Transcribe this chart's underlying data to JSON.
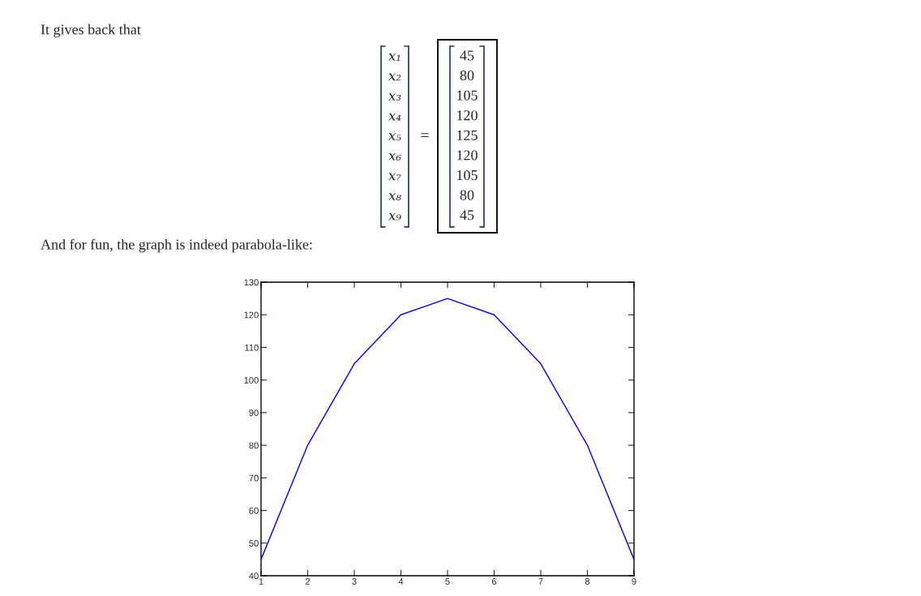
{
  "chart_data": {
    "type": "line",
    "x": [
      1,
      2,
      3,
      4,
      5,
      6,
      7,
      8,
      9
    ],
    "series": [
      {
        "color": "#0000ff",
        "values": [
          45,
          80,
          105,
          120,
          125,
          120,
          105,
          80,
          45
        ]
      }
    ],
    "xlim": [
      1,
      9
    ],
    "xticks": [
      1,
      2,
      3,
      4,
      5,
      6,
      7,
      8,
      9
    ],
    "ylim": [
      40,
      130
    ],
    "yticks": [
      40,
      50,
      60,
      70,
      80,
      90,
      100,
      110,
      120,
      130
    ],
    "grid": false,
    "legend": false,
    "marker": "none",
    "line_style": "solid",
    "annotations": [
      "It gives back that",
      "x₁",
      "x₂",
      "x₃",
      "x₄",
      "x₅",
      "x₆",
      "x₇",
      "x₈",
      "x₉",
      "=",
      "45",
      "80",
      "105",
      "120",
      "125",
      "120",
      "105",
      "80",
      "45",
      "And for fun, the graph is indeed parabola-like:"
    ]
  }
}
